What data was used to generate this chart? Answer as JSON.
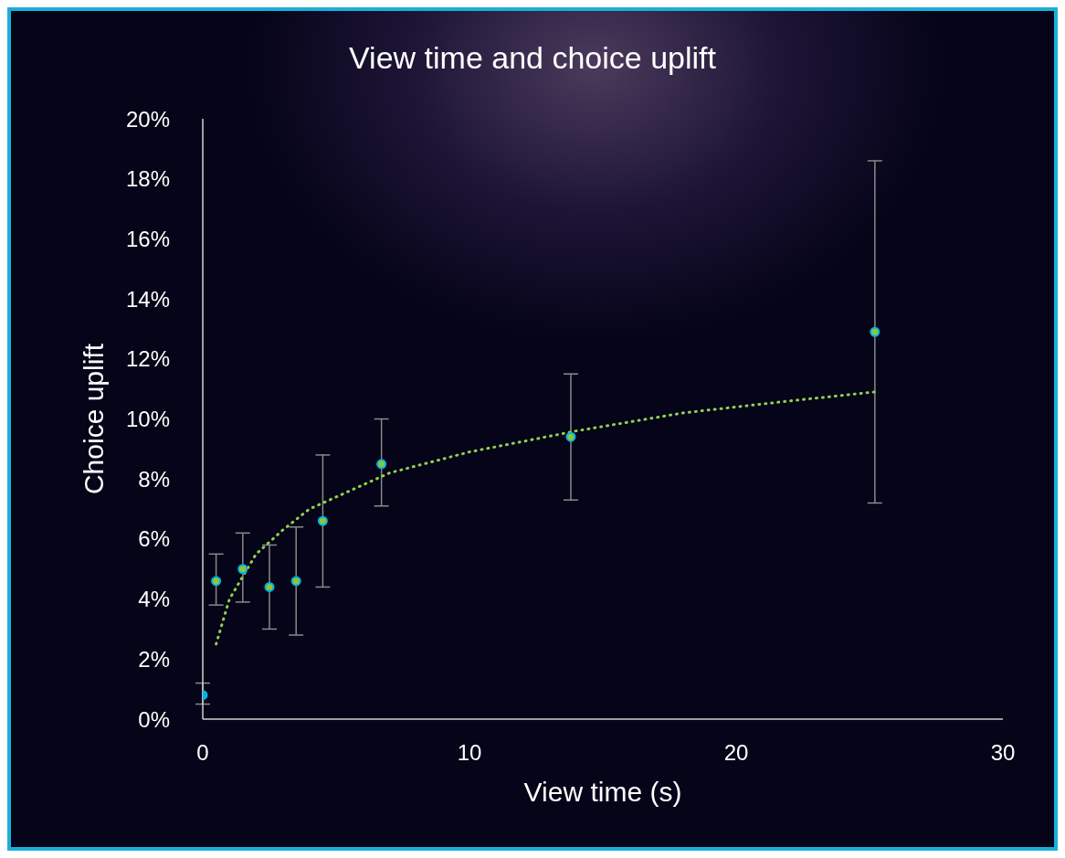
{
  "chart_data": {
    "type": "scatter",
    "title": "View time and choice uplift",
    "xlabel": "View time (s)",
    "ylabel": "Choice uplift",
    "xlim": [
      0,
      30
    ],
    "xticks": [
      0,
      10,
      20,
      30
    ],
    "ylim": [
      0,
      20
    ],
    "yticks": [
      {
        "value": 0,
        "label": "0%"
      },
      {
        "value": 2,
        "label": "2%"
      },
      {
        "value": 4,
        "label": "4%"
      },
      {
        "value": 6,
        "label": "6%"
      },
      {
        "value": 8,
        "label": "8%"
      },
      {
        "value": 10,
        "label": "10%"
      },
      {
        "value": 12,
        "label": "12%"
      },
      {
        "value": 14,
        "label": "14%"
      },
      {
        "value": 16,
        "label": "16%"
      },
      {
        "value": 18,
        "label": "18%"
      },
      {
        "value": 20,
        "label": "20%"
      }
    ],
    "grid": false,
    "legend": false,
    "series": [
      {
        "marker": "circle",
        "x": [
          0,
          0.5,
          1.5,
          2.5,
          3.5,
          4.5,
          6.7,
          13.8,
          25.2
        ],
        "values": [
          0.8,
          4.6,
          5.0,
          4.4,
          4.6,
          6.6,
          8.5,
          9.4,
          12.9
        ],
        "colors": [
          "#00b4e0",
          "#8cc63f",
          "#8cc63f",
          "#8cc63f",
          "#8cc63f",
          "#8cc63f",
          "#8cc63f",
          "#8cc63f",
          "#8cc63f"
        ],
        "errors": [
          [
            0.5,
            1.2
          ],
          [
            3.8,
            5.5
          ],
          [
            3.9,
            6.2
          ],
          [
            3.0,
            5.8
          ],
          [
            2.8,
            6.4
          ],
          [
            4.4,
            8.8
          ],
          [
            7.1,
            10.0
          ],
          [
            7.3,
            11.5
          ],
          [
            7.2,
            18.6
          ]
        ]
      },
      {
        "type": "line",
        "marker": "none",
        "line_style": "dotted",
        "color": "#92d050",
        "x": [
          0.5,
          1,
          2,
          3,
          4,
          5,
          7,
          10,
          14,
          18,
          22,
          25.2
        ],
        "values": [
          2.5,
          4.0,
          5.5,
          6.3,
          7.0,
          7.4,
          8.2,
          8.9,
          9.6,
          10.2,
          10.6,
          10.9
        ]
      }
    ]
  }
}
